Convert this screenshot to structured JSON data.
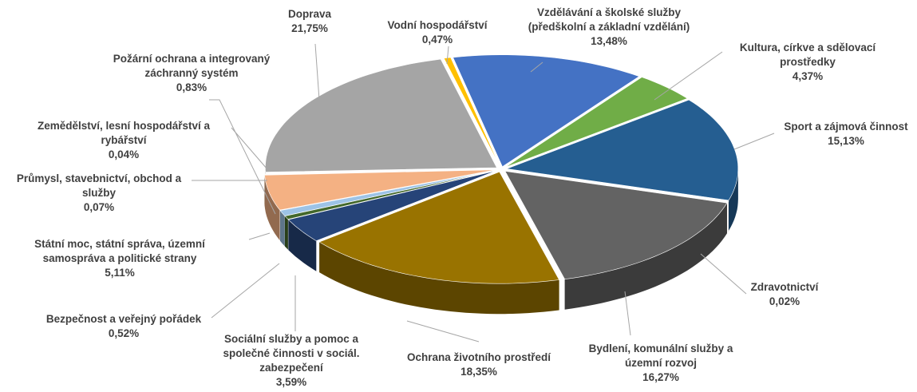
{
  "chart_data": {
    "type": "pie3d",
    "categories": [
      "Vodní hospodářství",
      "Vzdělávání a školské služby (předškolní a základní vzdělání)",
      "Kultura, církve a sdělovací prostředky",
      "Sport a zájmová činnost",
      "Zdravotnictví",
      "Bydlení, komunální služby a územní rozvoj",
      "Ochrana životního prostředí",
      "Sociální služby a pomoc a společné činnosti v sociál. zabezpečení",
      "Bezpečnost a veřejný pořádek",
      "Požární ochrana a integrovaný záchranný systém",
      "Státní moc, státní správa, územní samospráva a politické strany",
      "Průmysl, stavebnictví, obchod a služby",
      "Zemědělství, lesní hospodářství a rybářství",
      "Doprava"
    ],
    "values": [
      0.47,
      13.48,
      4.37,
      15.13,
      0.02,
      16.27,
      18.35,
      3.59,
      0.52,
      0.83,
      5.11,
      0.07,
      0.04,
      21.75
    ],
    "value_labels": [
      "0,47%",
      "13,48%",
      "4,37%",
      "15,13%",
      "0,02%",
      "16,27%",
      "18,35%",
      "3,59%",
      "0,52%",
      "0,83%",
      "5,11%",
      "0,07%",
      "0,04%",
      "21,75%"
    ],
    "colors": [
      "#ffc000",
      "#4472c4",
      "#70ad47",
      "#255e91",
      "#9e480e",
      "#636363",
      "#997300",
      "#264478",
      "#43682b",
      "#9dc3e6",
      "#f4b183",
      "#c9c9c9",
      "#ffe699",
      "#a5a5a5"
    ]
  }
}
